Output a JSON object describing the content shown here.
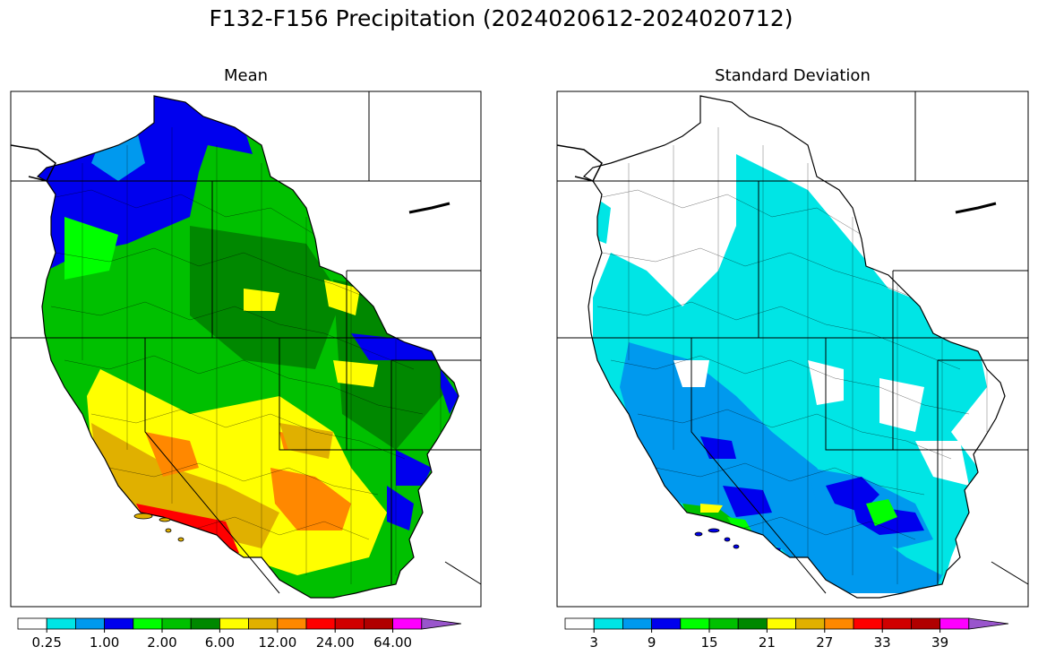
{
  "title": "F132-F156 Precipitation (2024020612-2024020712)",
  "panels": [
    {
      "title": "Mean"
    },
    {
      "title": "Standard Deviation"
    }
  ],
  "colorbar_colors": [
    "#ffffff",
    "#00e5e5",
    "#0099ee",
    "#0000ee",
    "#00ff00",
    "#00c000",
    "#008800",
    "#ffff00",
    "#e0b000",
    "#ff8800",
    "#ff0000",
    "#d00000",
    "#b00000",
    "#ff00ff",
    "#9955cc"
  ],
  "colorbars": [
    {
      "ticks": [
        "0.25",
        "1.00",
        "2.00",
        "6.00",
        "12.00",
        "24.00",
        "64.00"
      ]
    },
    {
      "ticks": [
        "3",
        "9",
        "15",
        "21",
        "27",
        "33",
        "39"
      ]
    }
  ]
}
